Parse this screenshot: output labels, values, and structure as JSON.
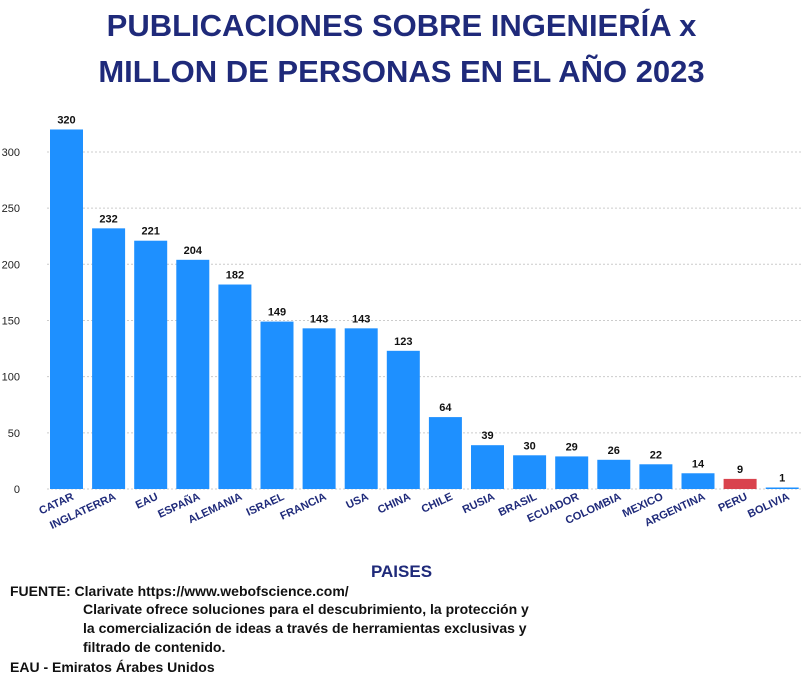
{
  "title_line1": "PUBLICACIONES SOBRE INGENIERÍA x",
  "title_line2": "MILLON DE PERSONAS EN EL AÑO 2023",
  "chart_data": {
    "type": "bar",
    "title": "PUBLICACIONES SOBRE INGENIERÍA x MILLON DE PERSONAS EN EL AÑO 2023",
    "xlabel": "PAISES",
    "ylabel": "",
    "categories": [
      "CATAR",
      "INGLATERRA",
      "EAU",
      "ESPAÑA",
      "ALEMANIA",
      "ISRAEL",
      "FRANCIA",
      "USA",
      "CHINA",
      "CHILE",
      "RUSIA",
      "BRASIL",
      "ECUADOR",
      "COLOMBIA",
      "MEXICO",
      "ARGENTINA",
      "PERU",
      "BOLIVIA"
    ],
    "values": [
      320,
      232,
      221,
      204,
      182,
      149,
      143,
      143,
      123,
      64,
      39,
      30,
      29,
      26,
      22,
      14,
      9,
      1
    ],
    "ylim": [
      0,
      320
    ],
    "yticks": [
      0,
      50,
      100,
      150,
      200,
      250,
      300
    ],
    "grid": true,
    "colors": {
      "default": "#1e90ff",
      "highlight": "#d9434d",
      "highlight_category": "PERU",
      "grid": "#cccccc",
      "tick_text": "#222222",
      "category_text": "#1f2a7a",
      "title": "#1f2a7a"
    }
  },
  "source": {
    "line1": "FUENTE: Clarivate https://www.webofscience.com/",
    "line2": "Clarivate ofrece soluciones para el descubrimiento, la protección y",
    "line3": "la comercialización de ideas a través de herramientas exclusivas y",
    "line4": "filtrado de contenido.",
    "note": "EAU - Emiratos Árabes Unidos"
  }
}
